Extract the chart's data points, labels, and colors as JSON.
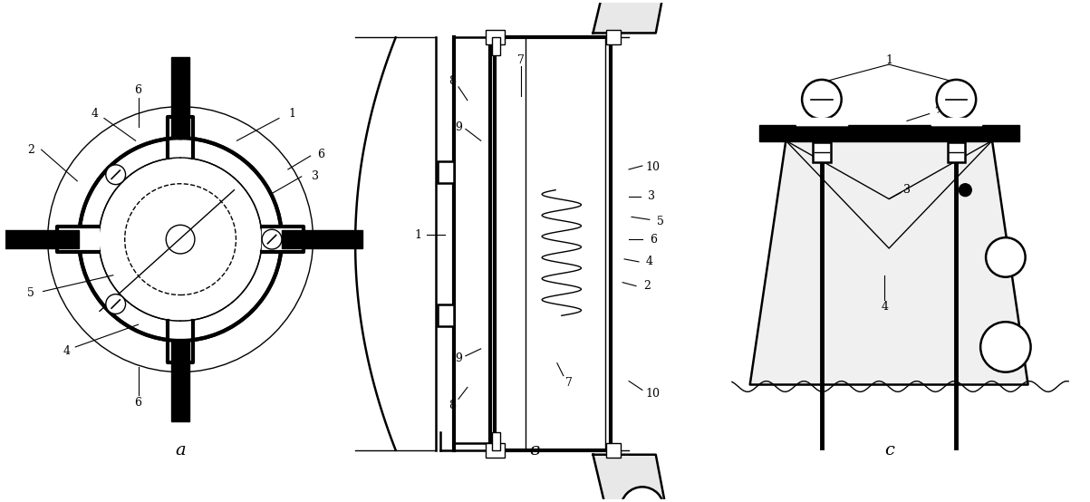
{
  "bg_color": "#ffffff",
  "fig_width": 12.03,
  "fig_height": 5.54,
  "label_a": "a",
  "label_b": "в",
  "label_c": "c"
}
